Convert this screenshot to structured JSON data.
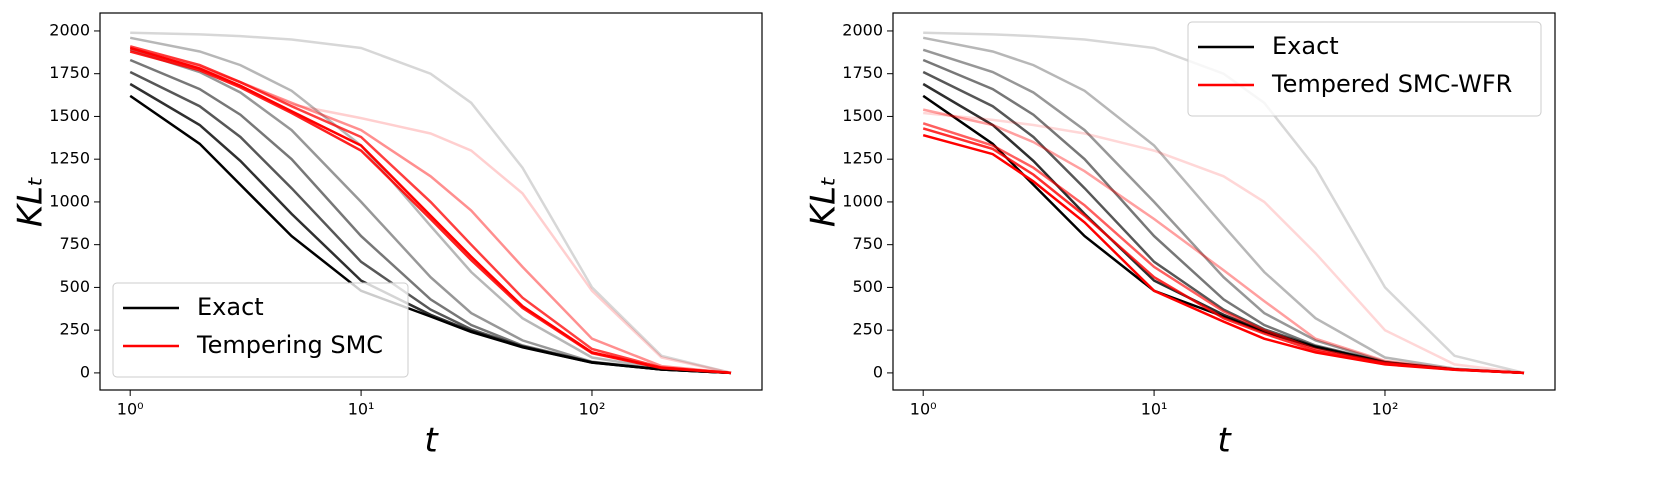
{
  "chart_data": [
    {
      "type": "line",
      "xlabel": "t",
      "ylabel": "KLₜ",
      "xscale": "log",
      "legend": "lower left",
      "x": [
        1,
        2,
        3,
        5,
        10,
        20,
        30,
        50,
        100,
        200,
        400
      ],
      "xlim": [
        0.74,
        545
      ],
      "xticks": [
        {
          "value": 1,
          "label": "10⁰"
        },
        {
          "value": 10,
          "label": "10¹"
        },
        {
          "value": 100,
          "label": "10²"
        }
      ],
      "ylim": [
        -100,
        2105
      ],
      "yticks": [
        0,
        250,
        500,
        750,
        1000,
        1250,
        1500,
        1750,
        2000
      ],
      "series": [
        {
          "name": "Exact",
          "color": "#000000",
          "values": [
            1620,
            1340,
            1100,
            800,
            480,
            330,
            240,
            150,
            60,
            20,
            0
          ]
        },
        {
          "color": "#000000d0",
          "values": [
            1690,
            1450,
            1240,
            930,
            540,
            340,
            245,
            152,
            61,
            20,
            0
          ]
        },
        {
          "color": "#000000a8",
          "values": [
            1760,
            1560,
            1380,
            1080,
            650,
            370,
            255,
            155,
            62,
            20,
            0
          ]
        },
        {
          "color": "#00000088",
          "values": [
            1830,
            1660,
            1510,
            1250,
            800,
            430,
            280,
            160,
            63,
            20,
            0
          ]
        },
        {
          "color": "#00000068",
          "values": [
            1890,
            1760,
            1640,
            1420,
            1000,
            560,
            350,
            190,
            65,
            21,
            0
          ]
        },
        {
          "color": "#00000048",
          "values": [
            1960,
            1880,
            1800,
            1650,
            1330,
            860,
            590,
            320,
            90,
            25,
            0
          ]
        },
        {
          "color": "#00000028",
          "values": [
            1990,
            1980,
            1970,
            1950,
            1900,
            1750,
            1580,
            1200,
            500,
            100,
            0
          ]
        },
        {
          "name": "Tempering SMC",
          "color": "#ff0000",
          "values": [
            1900,
            1780,
            1680,
            1530,
            1330,
            920,
            680,
            390,
            120,
            30,
            0
          ]
        },
        {
          "color": "#ff0000e0",
          "values": [
            1880,
            1770,
            1670,
            1520,
            1300,
            900,
            660,
            380,
            115,
            28,
            0
          ]
        },
        {
          "color": "#ff0000c0",
          "values": [
            1910,
            1800,
            1700,
            1560,
            1380,
            1000,
            750,
            440,
            140,
            32,
            0
          ]
        },
        {
          "color": "#ff000070",
          "values": [
            1890,
            1790,
            1700,
            1580,
            1420,
            1150,
            950,
            620,
            200,
            40,
            0
          ]
        },
        {
          "color": "#ff000030",
          "values": [
            1900,
            1800,
            1700,
            1570,
            1490,
            1400,
            1300,
            1050,
            480,
            90,
            0
          ]
        }
      ]
    },
    {
      "type": "line",
      "xlabel": "t",
      "ylabel": "KLₜ",
      "xscale": "log",
      "legend": "upper right",
      "x": [
        1,
        2,
        3,
        5,
        10,
        20,
        30,
        50,
        100,
        200,
        400
      ],
      "xlim": [
        0.74,
        545
      ],
      "xticks": [
        {
          "value": 1,
          "label": "10⁰"
        },
        {
          "value": 10,
          "label": "10¹"
        },
        {
          "value": 100,
          "label": "10²"
        }
      ],
      "ylim": [
        -100,
        2105
      ],
      "yticks": [
        0,
        250,
        500,
        750,
        1000,
        1250,
        1500,
        1750,
        2000
      ],
      "series": [
        {
          "name": "Exact",
          "color": "#000000",
          "values": [
            1620,
            1340,
            1100,
            800,
            480,
            330,
            240,
            150,
            60,
            20,
            0
          ]
        },
        {
          "color": "#000000d0",
          "values": [
            1690,
            1450,
            1240,
            930,
            540,
            340,
            245,
            152,
            61,
            20,
            0
          ]
        },
        {
          "color": "#000000a8",
          "values": [
            1760,
            1560,
            1380,
            1080,
            650,
            370,
            255,
            155,
            62,
            20,
            0
          ]
        },
        {
          "color": "#00000088",
          "values": [
            1830,
            1660,
            1510,
            1250,
            800,
            430,
            280,
            160,
            63,
            20,
            0
          ]
        },
        {
          "color": "#00000068",
          "values": [
            1890,
            1760,
            1640,
            1420,
            1000,
            560,
            350,
            190,
            65,
            21,
            0
          ]
        },
        {
          "color": "#00000048",
          "values": [
            1960,
            1880,
            1800,
            1650,
            1330,
            860,
            590,
            320,
            90,
            25,
            0
          ]
        },
        {
          "color": "#00000028",
          "values": [
            1990,
            1980,
            1970,
            1950,
            1900,
            1750,
            1580,
            1200,
            500,
            100,
            0
          ]
        },
        {
          "name": "Tempered SMC-WFR",
          "color": "#ff0000",
          "values": [
            1390,
            1280,
            1120,
            880,
            480,
            300,
            200,
            120,
            50,
            18,
            0
          ]
        },
        {
          "color": "#ff0000d0",
          "values": [
            1430,
            1310,
            1160,
            920,
            560,
            320,
            230,
            130,
            55,
            18,
            0
          ]
        },
        {
          "color": "#ff0000a0",
          "values": [
            1460,
            1330,
            1200,
            980,
            620,
            360,
            250,
            140,
            58,
            20,
            0
          ]
        },
        {
          "color": "#ff000060",
          "values": [
            1540,
            1450,
            1350,
            1180,
            900,
            600,
            420,
            200,
            70,
            22,
            0
          ]
        },
        {
          "color": "#ff000028",
          "values": [
            1520,
            1480,
            1450,
            1400,
            1300,
            1150,
            1000,
            700,
            250,
            50,
            0
          ]
        }
      ]
    }
  ]
}
